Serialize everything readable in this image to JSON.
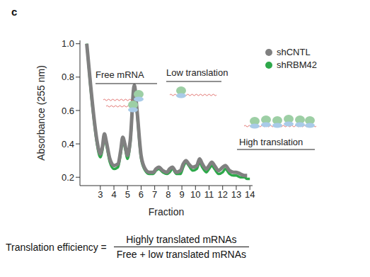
{
  "chart_data": {
    "type": "line",
    "panel_label": "c",
    "x_label": "Fraction",
    "y_label": "Absorbance (255 nm)",
    "annotations": [
      "Free mRNA",
      "Low translation",
      "High translation"
    ],
    "formula": {
      "label": "Translation efficiency =",
      "numerator": "Highly translated mRNAs",
      "denominator": "Free + low translated mRNAs"
    },
    "xlim": [
      1.5,
      14.2
    ],
    "xticks": [
      3,
      4,
      5,
      6,
      7,
      8,
      9,
      10,
      11,
      12,
      13,
      14
    ],
    "ylim": [
      0.15,
      1.02
    ],
    "yticks": [
      0.2,
      0.4,
      0.6,
      0.8,
      {
        "value": 1,
        "label": "1.0"
      }
    ],
    "legend": "upper right",
    "x": [
      2.0,
      2.25,
      2.5,
      2.75,
      3.0,
      3.15,
      3.3,
      3.45,
      3.7,
      4.0,
      4.3,
      4.5,
      4.65,
      4.8,
      5.0,
      5.2,
      5.5,
      5.7,
      6.0,
      6.3,
      6.6,
      6.9,
      7.1,
      7.3,
      7.6,
      7.9,
      8.1,
      8.3,
      8.6,
      8.9,
      9.1,
      9.3,
      9.5,
      9.8,
      10.1,
      10.3,
      10.5,
      10.8,
      11.0,
      11.2,
      11.4,
      11.7,
      12.0,
      12.2,
      12.5,
      12.8,
      13.0,
      13.3,
      13.6,
      13.8,
      14.0
    ],
    "series": [
      {
        "name": "shCNTL",
        "color": "#808080",
        "values": [
          1.0,
          0.78,
          0.58,
          0.42,
          0.34,
          0.38,
          0.46,
          0.41,
          0.31,
          0.27,
          0.28,
          0.36,
          0.44,
          0.4,
          0.33,
          0.42,
          0.75,
          0.6,
          0.33,
          0.25,
          0.23,
          0.23,
          0.25,
          0.26,
          0.24,
          0.23,
          0.25,
          0.26,
          0.23,
          0.24,
          0.28,
          0.3,
          0.28,
          0.26,
          0.27,
          0.31,
          0.28,
          0.25,
          0.27,
          0.29,
          0.27,
          0.24,
          0.26,
          0.27,
          0.24,
          0.23,
          0.23,
          0.22,
          0.21,
          0.21,
          null
        ]
      },
      {
        "name": "shRBM42",
        "color": "#2ea84a",
        "values": [
          1.0,
          0.76,
          0.56,
          0.4,
          0.32,
          0.36,
          0.44,
          0.39,
          0.29,
          0.25,
          0.26,
          0.34,
          0.42,
          0.38,
          0.31,
          0.4,
          0.74,
          0.58,
          0.31,
          0.24,
          0.22,
          0.22,
          0.24,
          0.25,
          0.23,
          0.22,
          0.23,
          0.25,
          0.22,
          0.22,
          0.26,
          0.29,
          0.27,
          0.24,
          0.25,
          0.29,
          0.26,
          0.23,
          0.25,
          0.27,
          0.25,
          0.22,
          0.23,
          0.25,
          0.22,
          0.21,
          0.21,
          0.2,
          0.2,
          0.19,
          0.19
        ]
      }
    ]
  }
}
